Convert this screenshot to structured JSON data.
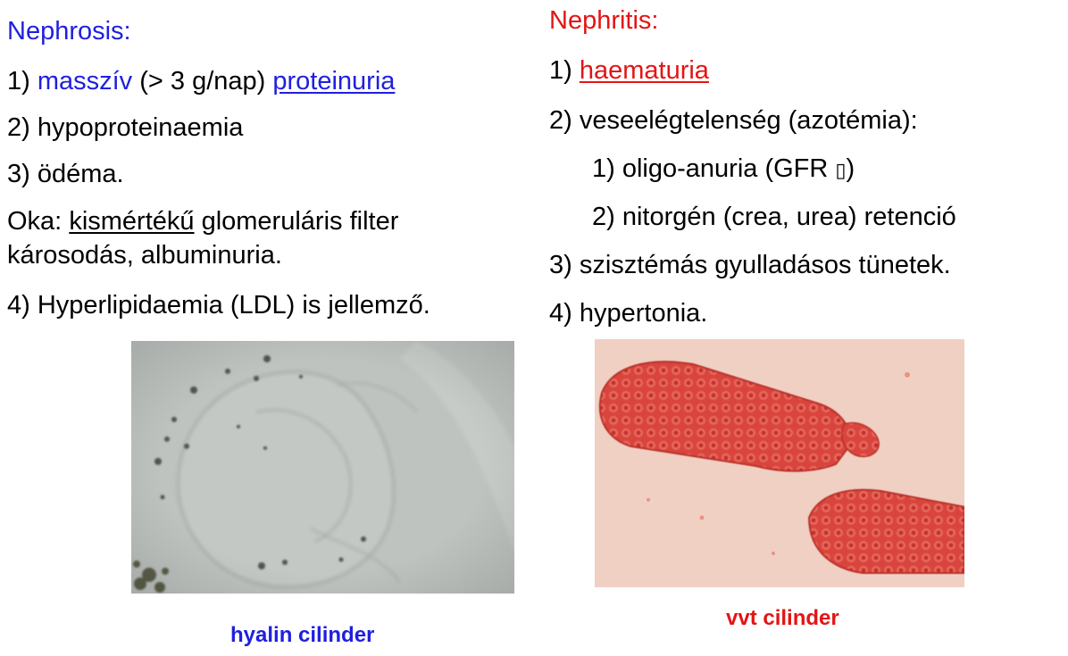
{
  "nephrosis": {
    "heading": "Nephrosis:",
    "item1": {
      "num": "1) ",
      "massive": "masszív",
      "middle": " (> 3 g/nap) ",
      "term": "proteinuria"
    },
    "item2": "2) hypoproteinaemia",
    "item3": "3) ödéma.",
    "cause": {
      "prefix": "Oka: ",
      "emph": "kismértékű",
      "rest1": " glomeruláris filter",
      "line2": "károsodás, albuminuria."
    },
    "item4": "4) Hyperlipidaemia (LDL) is jellemző."
  },
  "nephritis": {
    "heading": "Nephritis:",
    "item1": {
      "num": "1) ",
      "term": "haematuria"
    },
    "item2": "2) veseelégtelenség (azotémia):",
    "sub1": "1) oligo-anuria (GFR ",
    "sub1_glyph": "▯",
    "sub1_close": ")",
    "sub2": "2) nitorgén (crea, urea) retenció",
    "item3": "3) szisztémás gyulladásos tünetek.",
    "item4": "4) hypertonia."
  },
  "figures": {
    "left_caption": "hyalin cilinder",
    "right_caption": "vvt cilinder"
  },
  "colors": {
    "blue": "#1f1fe0",
    "red": "#e41414"
  }
}
